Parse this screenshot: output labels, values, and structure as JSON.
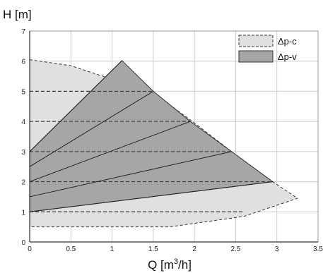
{
  "chart_data": {
    "type": "area",
    "xlim": [
      0,
      3.5
    ],
    "ylim": [
      0,
      7
    ],
    "xticks": [
      "0",
      "0.5",
      "1",
      "1.5",
      "2",
      "2.5",
      "3",
      "3.5"
    ],
    "yticks": [
      "0",
      "1",
      "2",
      "3",
      "4",
      "5",
      "6",
      "7"
    ],
    "grid": true,
    "legend_position": "top-right",
    "ylabel": "H [m]",
    "xlabel": "Q [m³/h]",
    "xlabel_parts": {
      "before": "Q [m",
      "sup": "3",
      "after": "/h]"
    },
    "colors": {
      "dpc_fill": "#e0e0e0",
      "dpv_fill": "#a6a6a6",
      "grid": "#cccccc",
      "edge": "#333333"
    },
    "series": [
      {
        "name": "Δp-c",
        "style": "dashed",
        "polygon": [
          [
            0,
            6.05
          ],
          [
            0.5,
            5.85
          ],
          [
            1.5,
            4.95
          ],
          [
            2.0,
            3.95
          ],
          [
            2.45,
            3.0
          ],
          [
            2.95,
            2.0
          ],
          [
            3.25,
            1.45
          ],
          [
            2.6,
            0.85
          ],
          [
            1.7,
            0.5
          ],
          [
            0,
            0.5
          ]
        ],
        "setpoint_lines": [
          {
            "H": 5,
            "x": [
              0,
              1.5
            ]
          },
          {
            "H": 4,
            "x": [
              0,
              1.95
            ]
          },
          {
            "H": 3,
            "x": [
              0,
              2.45
            ]
          },
          {
            "H": 2,
            "x": [
              0,
              2.95
            ]
          },
          {
            "H": 1,
            "x": [
              0,
              2.6
            ]
          }
        ]
      },
      {
        "name": "Δp-v",
        "style": "solid",
        "polygon": [
          [
            0,
            3.0
          ],
          [
            1.12,
            6.02
          ],
          [
            1.5,
            5.0
          ],
          [
            1.95,
            4.0
          ],
          [
            2.45,
            3.0
          ],
          [
            2.95,
            2.0
          ],
          [
            0,
            1.0
          ]
        ],
        "control_curves": [
          {
            "from": [
              0,
              1.0
            ],
            "to": [
              2.95,
              2.0
            ]
          },
          {
            "from": [
              0,
              1.5
            ],
            "to": [
              2.45,
              3.0
            ]
          },
          {
            "from": [
              0,
              2.0
            ],
            "to": [
              1.95,
              4.0
            ]
          },
          {
            "from": [
              0,
              2.5
            ],
            "to": [
              1.5,
              5.0
            ]
          },
          {
            "from": [
              0,
              3.0
            ],
            "to": [
              1.12,
              6.02
            ]
          }
        ]
      }
    ]
  }
}
